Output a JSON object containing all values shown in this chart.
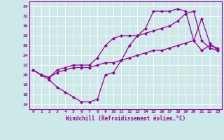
{
  "xlabel": "Windchill (Refroidissement éolien,°C)",
  "xlim": [
    -0.5,
    23.5
  ],
  "ylim": [
    13,
    35
  ],
  "yticks": [
    14,
    16,
    18,
    20,
    22,
    24,
    26,
    28,
    30,
    32,
    34
  ],
  "xticks": [
    0,
    1,
    2,
    3,
    4,
    5,
    6,
    7,
    8,
    9,
    10,
    11,
    12,
    13,
    14,
    15,
    16,
    17,
    18,
    19,
    20,
    21,
    22,
    23
  ],
  "bg_color": "#cce8e8",
  "line_color": "#990099",
  "grid_color": "#ffffff",
  "line1_x": [
    0,
    1,
    2,
    3,
    4,
    5,
    6,
    7,
    8,
    9,
    10,
    11,
    12,
    13,
    14,
    15,
    16,
    17,
    18,
    19,
    20,
    21,
    22,
    23
  ],
  "line1_y": [
    21,
    20,
    19,
    17.5,
    16.5,
    15.5,
    14.5,
    14.5,
    15,
    20,
    20.5,
    23,
    26,
    28,
    29.5,
    33,
    33,
    33,
    33.5,
    33,
    27,
    31.5,
    26.5,
    25
  ],
  "line2_x": [
    0,
    1,
    2,
    3,
    4,
    5,
    6,
    7,
    8,
    9,
    10,
    11,
    12,
    13,
    14,
    15,
    16,
    17,
    18,
    19,
    20,
    21,
    22,
    23
  ],
  "line2_y": [
    21,
    20,
    19.5,
    21,
    21.5,
    22,
    22,
    22,
    23.5,
    26,
    27.5,
    28,
    28,
    28,
    28.5,
    29,
    29.5,
    30,
    31,
    32.5,
    33,
    27,
    25.5,
    25
  ],
  "line3_x": [
    0,
    1,
    2,
    3,
    4,
    5,
    6,
    7,
    8,
    9,
    10,
    11,
    12,
    13,
    14,
    15,
    16,
    17,
    18,
    19,
    20,
    21,
    22,
    23
  ],
  "line3_y": [
    21,
    20,
    19.5,
    20.5,
    21,
    21.5,
    21.5,
    21.5,
    22,
    22.5,
    22.5,
    23,
    23.5,
    24,
    24.5,
    25,
    25,
    25.5,
    26,
    26.5,
    27,
    25,
    26,
    25.5
  ]
}
